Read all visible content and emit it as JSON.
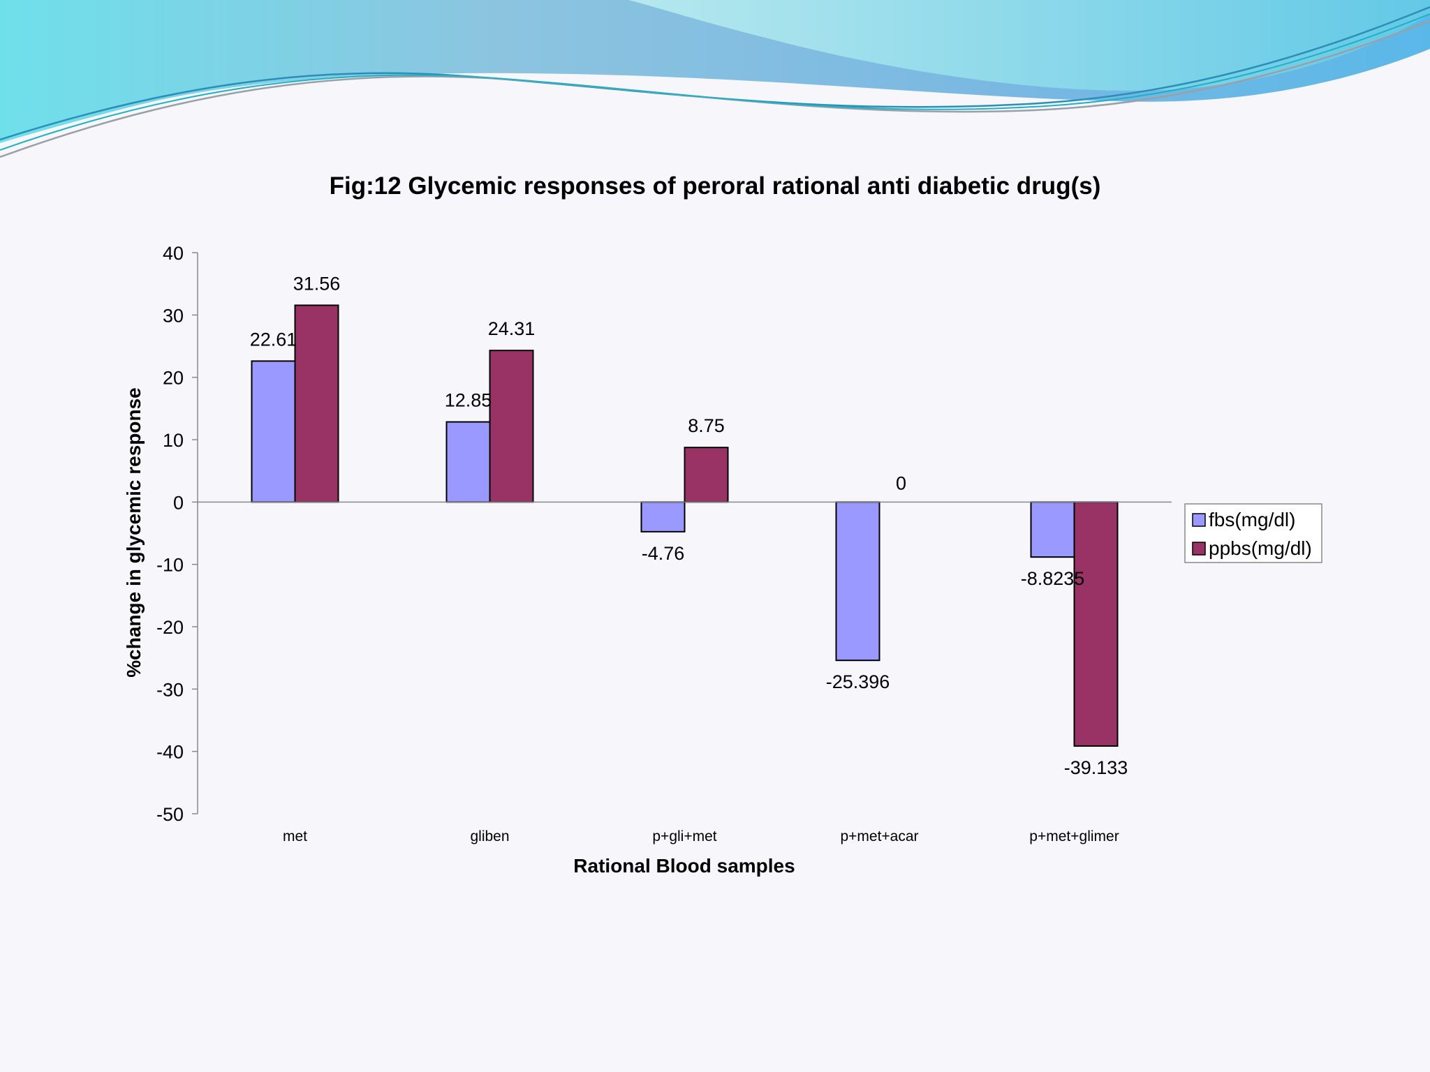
{
  "colors": {
    "fbs": "#9999ff",
    "ppbs": "#993366",
    "bar_outline": "#000000",
    "axis": "#888888",
    "background": "#f7f6fa"
  },
  "chart_data": {
    "type": "bar",
    "title": "Fig:12 Glycemic responses of peroral rational anti diabetic drug(s)",
    "xlabel": "Rational Blood samples",
    "ylabel": "%change in glycemic response",
    "categories": [
      "met",
      "gliben",
      "p+gli+met",
      "p+met+acar",
      "p+met+glimer"
    ],
    "ylim": [
      -50,
      40
    ],
    "yticks": [
      40,
      30,
      20,
      10,
      0,
      -10,
      -20,
      -30,
      -40,
      -50
    ],
    "grid": false,
    "legend_position": "right",
    "series": [
      {
        "name": "fbs(mg/dl)",
        "values": [
          22.61,
          12.85,
          -4.76,
          -25.396,
          -8.8235
        ],
        "labels": [
          "22.61",
          "12.85",
          "-4.76",
          "-25.396",
          "-8.8235"
        ]
      },
      {
        "name": "ppbs(mg/dl)",
        "values": [
          31.56,
          24.31,
          8.75,
          0,
          -39.133
        ],
        "labels": [
          "31.56",
          "24.31",
          "8.75",
          "0",
          "-39.133"
        ]
      }
    ]
  }
}
